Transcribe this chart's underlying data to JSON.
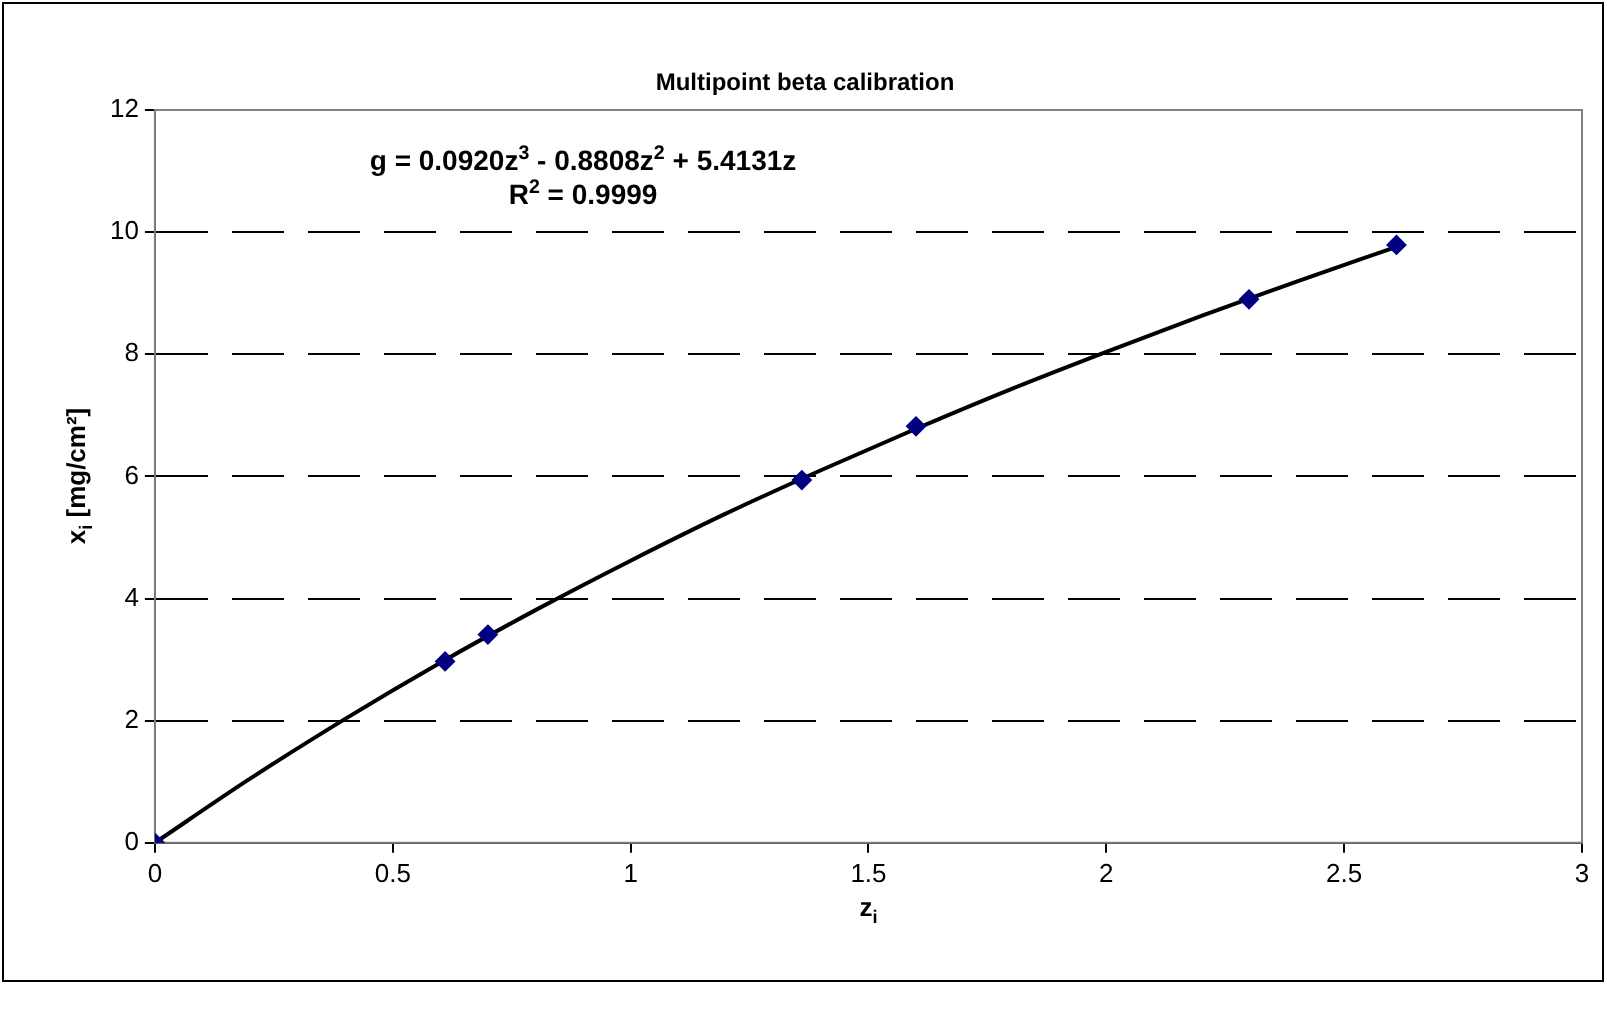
{
  "chart_data": {
    "type": "scatter",
    "title": "Multipoint beta calibration",
    "xlabel": "z$_{i}$",
    "ylabel": "x$_{i}$ [mg/cm²]",
    "annotations": [
      "g = 0.0920z$^{3}$ - 0.8808z$^{2}$ + 5.4131z",
      "R$^{2}$ = 0.9999"
    ],
    "series": [
      {
        "color": "#000080",
        "x": [
          0,
          0.61,
          0.7,
          1.36,
          1.6,
          2.3,
          2.61
        ],
        "values": [
          0,
          2.97,
          3.41,
          5.94,
          6.82,
          8.9,
          9.79
        ],
        "marker": "diamond"
      },
      {
        "type": "line",
        "color": "#000000",
        "x": [
          0,
          0.2,
          0.4,
          0.6,
          0.8,
          1.0,
          1.2,
          1.4,
          1.6,
          1.8,
          2.0,
          2.2,
          2.4,
          2.61
        ],
        "values": [
          0,
          1.05,
          2.03,
          2.95,
          3.81,
          4.62,
          5.39,
          6.1,
          6.78,
          7.43,
          8.04,
          8.63,
          9.19,
          9.76
        ],
        "marker": "none",
        "line_style": "solid"
      }
    ],
    "xlim": [
      0,
      3
    ],
    "xticks": [
      0,
      0.5,
      1,
      1.5,
      2,
      2.5,
      3
    ],
    "ylim": [
      0,
      12
    ],
    "yticks": [
      0,
      2,
      4,
      6,
      8,
      10,
      12
    ],
    "grid": "y",
    "legend": false
  }
}
